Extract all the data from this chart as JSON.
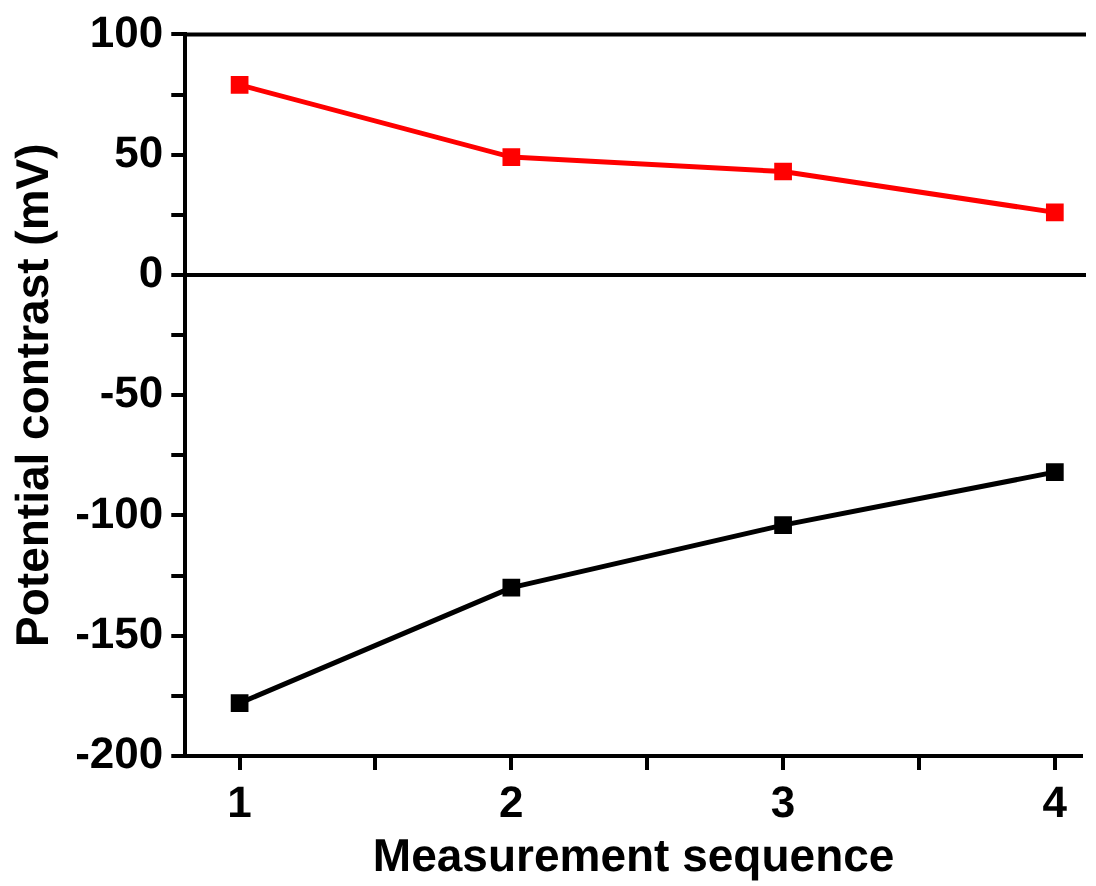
{
  "chart_data": {
    "type": "line",
    "xlabel": "Measurement sequence",
    "ylabel": "Potential contrast (mV)",
    "x": [
      1,
      2,
      3,
      4
    ],
    "series": [
      {
        "color": "#ff0000",
        "values": [
          79,
          49,
          43,
          26
        ]
      },
      {
        "color": "#000000",
        "values": [
          -178,
          -130,
          -104,
          -82
        ]
      }
    ],
    "xlim": [
      0.8,
      4.1
    ],
    "ylim": [
      -200,
      100
    ],
    "xticks": [
      1,
      {
        "value": 1.5,
        "label": null
      },
      2,
      {
        "value": 2.5,
        "label": null
      },
      3,
      {
        "value": 3.5,
        "label": null
      },
      4
    ],
    "yticks": [
      -200,
      {
        "value": -175,
        "label": null
      },
      -150,
      {
        "value": -125,
        "label": null
      },
      -100,
      {
        "value": -75,
        "label": null
      },
      -50,
      {
        "value": -25,
        "label": null
      },
      0,
      {
        "value": 25,
        "label": null
      },
      50,
      {
        "value": 75,
        "label": null
      },
      100
    ],
    "ref_lines": [
      {
        "axis": "y",
        "value": 0,
        "color": "#000000"
      }
    ],
    "marker": "square",
    "line_style": "solid",
    "grid": false,
    "legend": false
  }
}
